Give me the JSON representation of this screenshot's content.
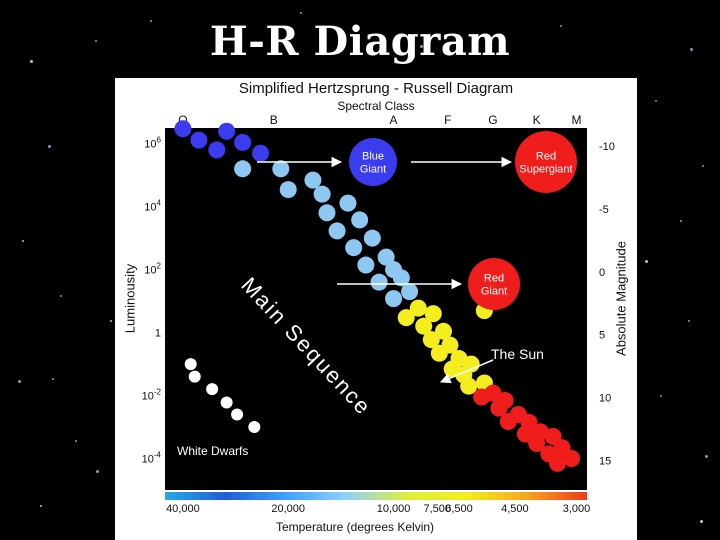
{
  "slide": {
    "title": "H-R Diagram"
  },
  "colors": {
    "background": "#000000",
    "panel": "#ffffff",
    "plot_background": "#000000",
    "o_b_stars": "#3b3bf0",
    "b_a_stars": "#8ec8f2",
    "f_g_stars": "#f4ee1e",
    "k_m_stars": "#f01d1d",
    "white_dwarfs": "#ffffff",
    "temperature_gradient": [
      "#27a9e6",
      "#1f5fd6",
      "#3ea0ff",
      "#8ed0ff",
      "#ddef3b",
      "#f4ee1e",
      "#f6a51e",
      "#ee3a1c"
    ]
  },
  "chart_data": {
    "type": "scatter",
    "title": "Simplified Hertzsprung - Russell Diagram",
    "top_axis": {
      "label": "Spectral Class",
      "classes": [
        "O",
        "B",
        "A",
        "F",
        "G",
        "K",
        "M"
      ]
    },
    "bottom_axis": {
      "label": "Temperature (degrees Kelvin)",
      "ticks": [
        "40,000",
        "20,000",
        "10,000",
        "7,500",
        "6,500",
        "4,500",
        "3,000"
      ],
      "scale": "log, decreasing left to right"
    },
    "left_axis": {
      "label": "Luminousity",
      "scale": "log",
      "ticks": [
        {
          "base": "10",
          "exp": "6",
          "value": 1000000
        },
        {
          "base": "10",
          "exp": "4",
          "value": 10000
        },
        {
          "base": "10",
          "exp": "2",
          "value": 100
        },
        {
          "base": "1",
          "exp": "",
          "value": 1
        },
        {
          "base": "10",
          "exp": "-2",
          "value": 0.01
        },
        {
          "base": "10",
          "exp": "-4",
          "value": 0.0001
        }
      ]
    },
    "right_axis": {
      "label": "Absolute Magnitude",
      "ticks": [
        "-10",
        "-5",
        "0",
        "5",
        "10",
        "15"
      ]
    },
    "labels": {
      "main_sequence": "Main Sequence",
      "white_dwarfs": "White Dwarfs",
      "the_sun": "The Sun"
    },
    "giants": [
      {
        "name": "blue-giant",
        "lines": [
          "Blue",
          "Giant"
        ],
        "color": "#3b3bf0",
        "temp_k": 20000,
        "luminosity": 1000000
      },
      {
        "name": "red-supergiant",
        "lines": [
          "Red",
          "Supergiant"
        ],
        "color": "#f01d1d",
        "temp_k": 3000,
        "luminosity": 1000000
      },
      {
        "name": "red-giant",
        "lines": [
          "Red",
          "Giant"
        ],
        "color": "#f01d1d",
        "temp_k": 3000,
        "luminosity": 100
      }
    ],
    "main_sequence": [
      {
        "temp_k": 40000,
        "luminosity": 3000000,
        "class": "O"
      },
      {
        "temp_k": 30000,
        "luminosity": 2500000,
        "class": "O"
      },
      {
        "temp_k": 36000,
        "luminosity": 1300000,
        "class": "O"
      },
      {
        "temp_k": 27000,
        "luminosity": 1100000,
        "class": "O"
      },
      {
        "temp_k": 32000,
        "luminosity": 640000,
        "class": "O"
      },
      {
        "temp_k": 24000,
        "luminosity": 500000,
        "class": "O"
      },
      {
        "temp_k": 27000,
        "luminosity": 160000,
        "class": "B"
      },
      {
        "temp_k": 21000,
        "luminosity": 160000,
        "class": "B"
      },
      {
        "temp_k": 17000,
        "luminosity": 70000,
        "class": "B"
      },
      {
        "temp_k": 20000,
        "luminosity": 35000,
        "class": "B"
      },
      {
        "temp_k": 16000,
        "luminosity": 25000,
        "class": "B"
      },
      {
        "temp_k": 13500,
        "luminosity": 13000,
        "class": "B"
      },
      {
        "temp_k": 15500,
        "luminosity": 6400,
        "class": "B"
      },
      {
        "temp_k": 12500,
        "luminosity": 3800,
        "class": "B"
      },
      {
        "temp_k": 14500,
        "luminosity": 1700,
        "class": "B"
      },
      {
        "temp_k": 11500,
        "luminosity": 1000,
        "class": "A"
      },
      {
        "temp_k": 13000,
        "luminosity": 500,
        "class": "A"
      },
      {
        "temp_k": 10500,
        "luminosity": 250,
        "class": "A"
      },
      {
        "temp_k": 12000,
        "luminosity": 140,
        "class": "A"
      },
      {
        "temp_k": 10000,
        "luminosity": 100,
        "class": "A"
      },
      {
        "temp_k": 9500,
        "luminosity": 55,
        "class": "A"
      },
      {
        "temp_k": 11000,
        "luminosity": 40,
        "class": "A"
      },
      {
        "temp_k": 9000,
        "luminosity": 20,
        "class": "A"
      },
      {
        "temp_k": 10000,
        "luminosity": 12,
        "class": "A"
      },
      {
        "temp_k": 8500,
        "luminosity": 6,
        "class": "F"
      },
      {
        "temp_k": 7700,
        "luminosity": 4,
        "class": "F"
      },
      {
        "temp_k": 9200,
        "luminosity": 3,
        "class": "F"
      },
      {
        "temp_k": 8200,
        "luminosity": 1.6,
        "class": "F"
      },
      {
        "temp_k": 7200,
        "luminosity": 1.1,
        "class": "F"
      },
      {
        "temp_k": 7800,
        "luminosity": 0.6,
        "class": "F"
      },
      {
        "temp_k": 6900,
        "luminosity": 0.4,
        "class": "G"
      },
      {
        "temp_k": 7400,
        "luminosity": 0.22,
        "class": "G"
      },
      {
        "temp_k": 6500,
        "luminosity": 0.15,
        "class": "G"
      },
      {
        "temp_k": 6800,
        "luminosity": 0.07,
        "class": "G"
      },
      {
        "temp_k": 6000,
        "luminosity": 0.1,
        "class": "G"
      },
      {
        "temp_k": 6300,
        "luminosity": 0.045,
        "class": "G"
      },
      {
        "temp_k": 5500,
        "luminosity": 0.025,
        "class": "G"
      },
      {
        "temp_k": 6100,
        "luminosity": 0.02,
        "class": "G"
      },
      {
        "temp_k": 5200,
        "luminosity": 0.012,
        "class": "K"
      },
      {
        "temp_k": 4800,
        "luminosity": 0.007,
        "class": "K"
      },
      {
        "temp_k": 5600,
        "luminosity": 0.009,
        "class": "K"
      },
      {
        "temp_k": 5000,
        "luminosity": 0.004,
        "class": "K"
      },
      {
        "temp_k": 4400,
        "luminosity": 0.0025,
        "class": "K"
      },
      {
        "temp_k": 4700,
        "luminosity": 0.0015,
        "class": "K"
      },
      {
        "temp_k": 4100,
        "luminosity": 0.0014,
        "class": "K"
      },
      {
        "temp_k": 3800,
        "luminosity": 0.0007,
        "class": "M"
      },
      {
        "temp_k": 4200,
        "luminosity": 0.0006,
        "class": "M"
      },
      {
        "temp_k": 3500,
        "luminosity": 0.0005,
        "class": "M"
      },
      {
        "temp_k": 3900,
        "luminosity": 0.0003,
        "class": "M"
      },
      {
        "temp_k": 3300,
        "luminosity": 0.00022,
        "class": "M"
      },
      {
        "temp_k": 3600,
        "luminosity": 0.00014,
        "class": "M"
      },
      {
        "temp_k": 3100,
        "luminosity": 0.0001,
        "class": "M"
      },
      {
        "temp_k": 3400,
        "luminosity": 7e-05,
        "class": "M"
      }
    ],
    "white_dwarfs": [
      {
        "temp_k": 38000,
        "luminosity": 0.1
      },
      {
        "temp_k": 37000,
        "luminosity": 0.04
      },
      {
        "temp_k": 33000,
        "luminosity": 0.016
      },
      {
        "temp_k": 30000,
        "luminosity": 0.006
      },
      {
        "temp_k": 28000,
        "luminosity": 0.0025
      },
      {
        "temp_k": 25000,
        "luminosity": 0.001
      }
    ],
    "the_sun": {
      "temp_k": 5800,
      "luminosity": 1
    }
  }
}
